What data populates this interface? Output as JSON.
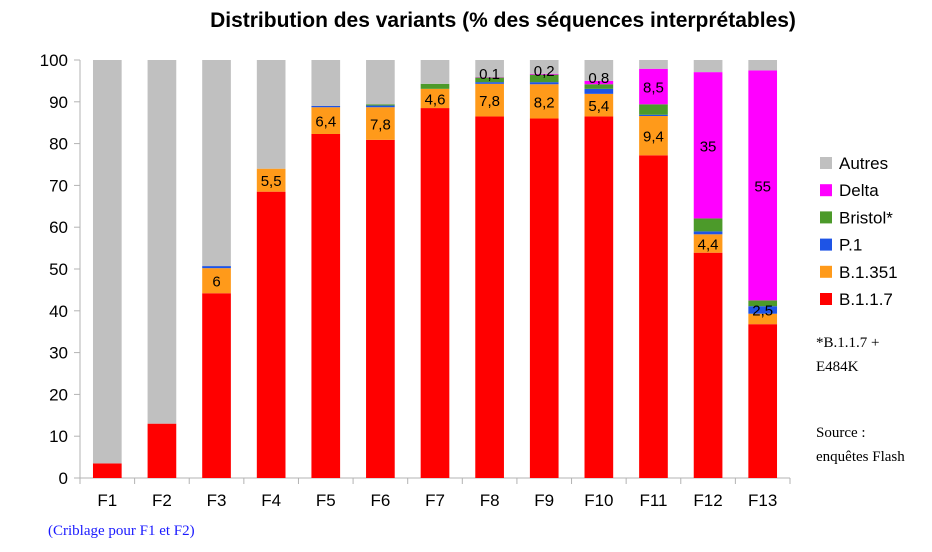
{
  "chart_data": {
    "type": "bar",
    "stacked": true,
    "title": "Distribution des variants (%  des séquences interprétables)",
    "xlabel": "",
    "ylabel": "",
    "ylim": [
      0,
      100
    ],
    "yticks": [
      0,
      10,
      20,
      30,
      40,
      50,
      60,
      70,
      80,
      90,
      100
    ],
    "grid": false,
    "legend_position": "right",
    "categories": [
      "F1",
      "F2",
      "F3",
      "F4",
      "F5",
      "F6",
      "F7",
      "F8",
      "F9",
      "F10",
      "F11",
      "F12",
      "F13"
    ],
    "series": [
      {
        "name": "B.1.1.7",
        "color": "#ff0000",
        "values": [
          3.5,
          13,
          44.2,
          68.5,
          82.3,
          80.9,
          88.5,
          86.5,
          86,
          86.5,
          77.2,
          53.9,
          36.8
        ]
      },
      {
        "name": "B.1.351",
        "color": "#ff9a1a",
        "values": [
          0,
          0,
          6,
          5.5,
          6.4,
          7.8,
          4.6,
          7.8,
          8.2,
          5.4,
          9.4,
          4.4,
          2.5
        ]
      },
      {
        "name": "P.1",
        "color": "#1e54e6",
        "values": [
          0,
          0,
          0.5,
          0,
          0.3,
          0.4,
          0,
          0.4,
          0.5,
          1.2,
          0.3,
          0.7,
          1.8
        ]
      },
      {
        "name": "Bristol*",
        "color": "#4c9a2a",
        "values": [
          0,
          0,
          0,
          0,
          0,
          0.3,
          1.2,
          1.1,
          1.8,
          1.1,
          2.5,
          3.1,
          1.4
        ]
      },
      {
        "name": "Delta",
        "color": "#ff00ff",
        "values": [
          0,
          0,
          0,
          0,
          0,
          0,
          0,
          0.1,
          0.2,
          0.8,
          8.5,
          35,
          55
        ]
      },
      {
        "name": "Autres",
        "color": "#c0c0c0",
        "values": [
          96.5,
          87,
          49.3,
          26,
          11,
          10.6,
          5.7,
          4.1,
          3.3,
          5,
          2.1,
          2.9,
          2.5
        ]
      }
    ],
    "data_labels": [
      {
        "category": "F3",
        "series": "B.1.351",
        "text": "6"
      },
      {
        "category": "F4",
        "series": "B.1.351",
        "text": "5,5"
      },
      {
        "category": "F5",
        "series": "B.1.351",
        "text": "6,4"
      },
      {
        "category": "F6",
        "series": "B.1.351",
        "text": "7,8"
      },
      {
        "category": "F7",
        "series": "B.1.351",
        "text": "4,6"
      },
      {
        "category": "F8",
        "series": "B.1.351",
        "text": "7,8"
      },
      {
        "category": "F9",
        "series": "B.1.351",
        "text": "8,2"
      },
      {
        "category": "F10",
        "series": "B.1.351",
        "text": "5,4"
      },
      {
        "category": "F11",
        "series": "B.1.351",
        "text": "9,4"
      },
      {
        "category": "F12",
        "series": "B.1.351",
        "text": "4,4"
      },
      {
        "category": "F13",
        "series": "B.1.351",
        "text": "2,5"
      },
      {
        "category": "F8",
        "series": "Delta",
        "text": "0,1"
      },
      {
        "category": "F9",
        "series": "Delta",
        "text": "0,2"
      },
      {
        "category": "F10",
        "series": "Delta",
        "text": "0,8"
      },
      {
        "category": "F11",
        "series": "Delta",
        "text": "8,5"
      },
      {
        "category": "F12",
        "series": "Delta",
        "text": "35"
      },
      {
        "category": "F13",
        "series": "Delta",
        "text": "55"
      }
    ]
  },
  "legend_order": [
    "Autres",
    "Delta",
    "Bristol*",
    "P.1",
    "B.1.351",
    "B.1.1.7"
  ],
  "notes": {
    "bristol_line1": "*B.1.1.7 +",
    "bristol_line2": "E484K",
    "source_line1": "Source :",
    "source_line2": "enquêtes Flash"
  },
  "caption": "(Criblage pour F1 et F2)"
}
